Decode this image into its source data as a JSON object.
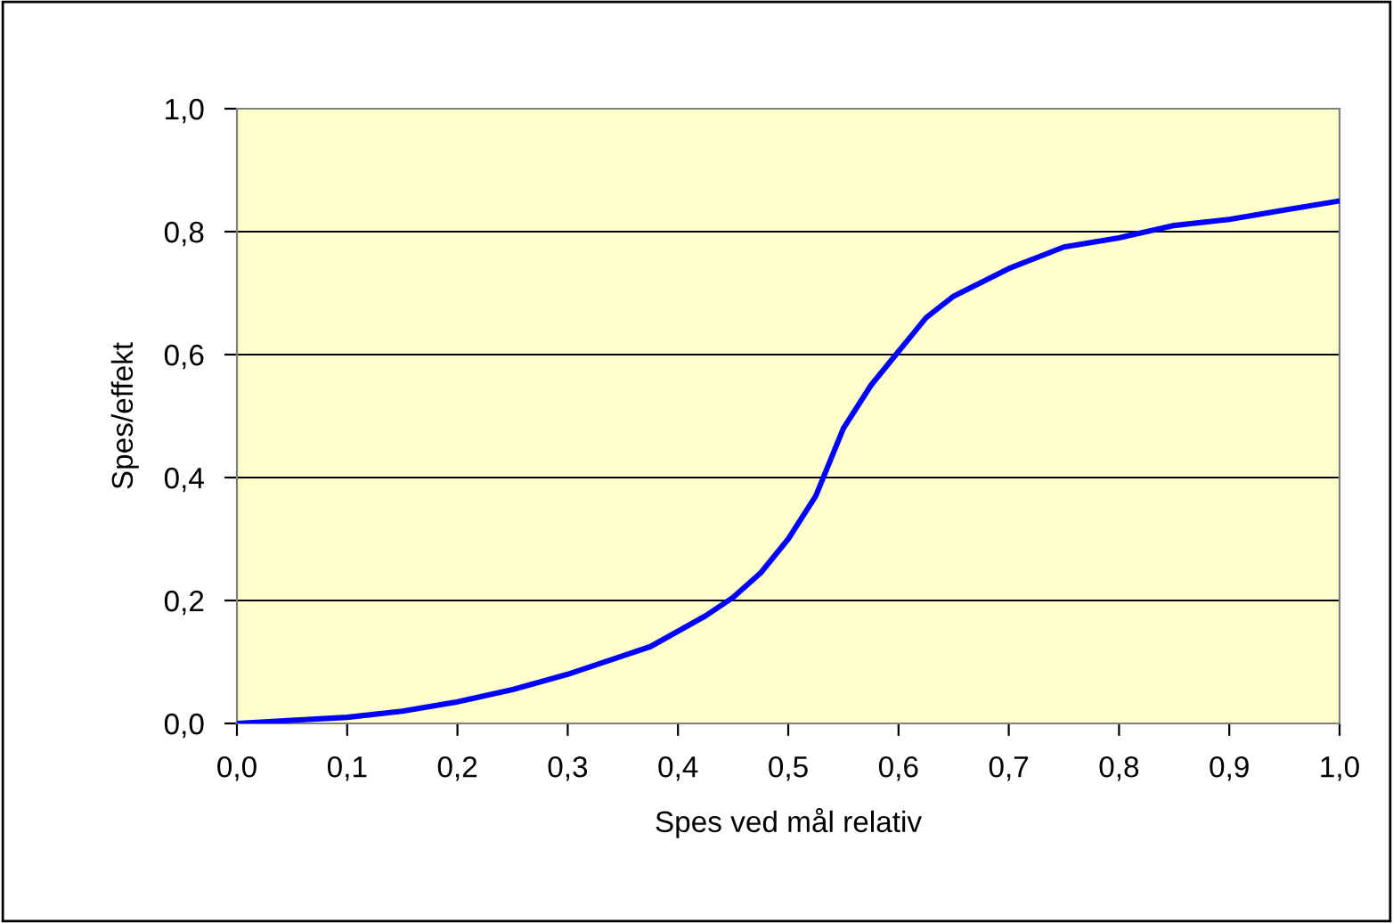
{
  "chart_data": {
    "type": "line",
    "xlabel": "Spes ved mål relativ",
    "ylabel": "Spes/effekt",
    "series": [
      {
        "color": "#0000ff",
        "x": [
          0,
          0.05,
          0.1,
          0.15,
          0.2,
          0.25,
          0.3,
          0.35,
          0.375,
          0.4,
          0.425,
          0.45,
          0.475,
          0.5,
          0.525,
          0.55,
          0.575,
          0.6,
          0.625,
          0.65,
          0.7,
          0.75,
          0.8,
          0.85,
          0.9,
          0.95,
          1.0
        ],
        "values": [
          0,
          0.005,
          0.01,
          0.02,
          0.035,
          0.055,
          0.08,
          0.11,
          0.125,
          0.15,
          0.175,
          0.205,
          0.245,
          0.3,
          0.37,
          0.48,
          0.55,
          0.605,
          0.66,
          0.695,
          0.74,
          0.775,
          0.79,
          0.81,
          0.82,
          0.835,
          0.85
        ]
      }
    ],
    "xlim": [
      0,
      1.0
    ],
    "ylim": [
      0,
      1.0
    ],
    "xticks": [
      {
        "value": 0,
        "label": "0,0"
      },
      {
        "value": 0.1,
        "label": "0,1"
      },
      {
        "value": 0.2,
        "label": "0,2"
      },
      {
        "value": 0.3,
        "label": "0,3"
      },
      {
        "value": 0.4,
        "label": "0,4"
      },
      {
        "value": 0.5,
        "label": "0,5"
      },
      {
        "value": 0.6,
        "label": "0,6"
      },
      {
        "value": 0.7,
        "label": "0,7"
      },
      {
        "value": 0.8,
        "label": "0,8"
      },
      {
        "value": 0.9,
        "label": "0,9"
      },
      {
        "value": 1.0,
        "label": "1,0"
      }
    ],
    "yticks": [
      {
        "value": 0,
        "label": "0,0"
      },
      {
        "value": 0.2,
        "label": "0,2"
      },
      {
        "value": 0.4,
        "label": "0,4"
      },
      {
        "value": 0.6,
        "label": "0,6"
      },
      {
        "value": 0.8,
        "label": "0,8"
      },
      {
        "value": 1.0,
        "label": "1,0"
      }
    ],
    "grid": "y",
    "marker": "none",
    "line_style": "solid"
  }
}
